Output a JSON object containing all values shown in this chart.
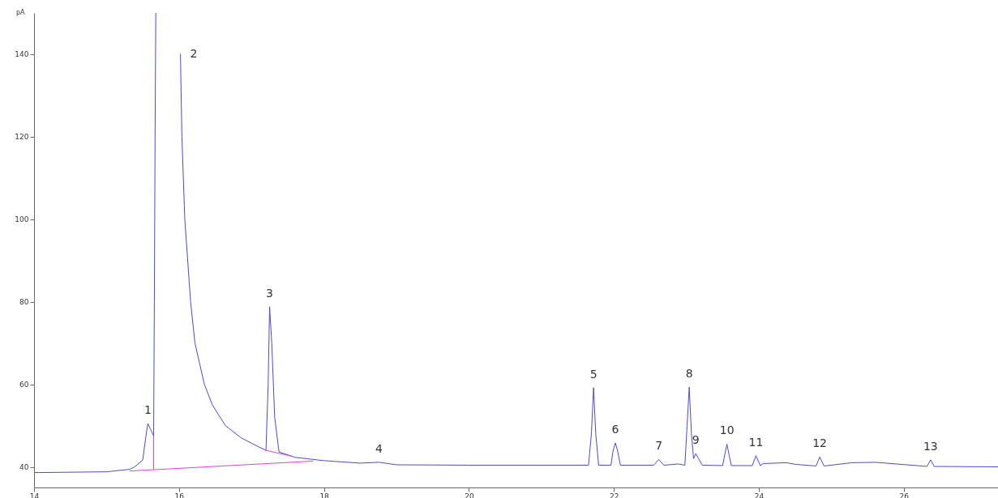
{
  "chart_data": {
    "type": "line",
    "ylabel": "pA",
    "xlim": [
      14,
      27.3
    ],
    "xticks": [
      14,
      16,
      18,
      20,
      22,
      24,
      26
    ],
    "ylim": [
      35,
      150
    ],
    "yticks": [
      40,
      60,
      80,
      100,
      120,
      140
    ],
    "grid": false,
    "marker": "none",
    "line_style": "solid",
    "series": [
      {
        "color": "#4b4bd0",
        "x": [
          14.0,
          15.0,
          15.32,
          15.39,
          15.5,
          15.54,
          15.57,
          15.61,
          15.65,
          15.66,
          15.67,
          15.68,
          16.01,
          16.02,
          16.04,
          16.08,
          16.16,
          16.22,
          16.35,
          16.46,
          16.64,
          16.86,
          17.08,
          17.2,
          17.23,
          17.25,
          17.28,
          17.32,
          17.38,
          17.6,
          18.0,
          18.5,
          18.76,
          19.0,
          20.0,
          21.0,
          21.65,
          21.69,
          21.72,
          21.75,
          21.79,
          21.96,
          21.99,
          22.02,
          22.05,
          22.09,
          22.55,
          22.62,
          22.69,
          22.89,
          22.98,
          23.01,
          23.04,
          23.07,
          23.1,
          23.13,
          23.22,
          23.5,
          23.56,
          23.62,
          23.91,
          23.96,
          24.02,
          24.06,
          24.38,
          24.51,
          24.79,
          24.84,
          24.9,
          25.28,
          25.61,
          26.32,
          26.37,
          26.42,
          27.3
        ],
        "values": [
          38.6,
          38.8,
          39.4,
          40.0,
          41.7,
          47,
          50.5,
          49,
          47.5,
          80,
          120,
          150,
          null,
          140,
          120,
          100,
          80,
          70,
          60,
          55,
          50,
          47,
          45,
          44.0,
          60,
          78.8,
          70,
          52,
          43.6,
          42.3,
          41.5,
          40.9,
          41.1,
          40.5,
          40.4,
          40.4,
          40.4,
          48,
          59.2,
          48,
          40.4,
          40.4,
          44,
          45.8,
          44,
          40.4,
          40.4,
          41.8,
          40.4,
          40.7,
          40.4,
          50,
          59.3,
          48,
          42.0,
          43.2,
          40.4,
          40.3,
          45.5,
          40.3,
          40.3,
          42.7,
          40.3,
          40.8,
          41.0,
          40.6,
          40.2,
          42.4,
          40.2,
          41.0,
          41.1,
          40.1,
          41.7,
          40.1,
          40.0
        ]
      },
      {
        "color": "#e040e0",
        "x": [
          15.32,
          15.65,
          15.65,
          15.65,
          17.85
        ],
        "values": [
          39.0,
          39.3,
          47.5,
          39.3,
          41.4
        ]
      },
      {
        "color": "#e040e0",
        "x": [
          17.2,
          17.55
        ],
        "values": [
          44.0,
          42.6
        ]
      }
    ],
    "annotations": [
      {
        "text": "1",
        "x": 15.57,
        "y": 50.5
      },
      {
        "text": "2",
        "x": 16.02,
        "y": 140
      },
      {
        "text": "3",
        "x": 17.25,
        "y": 78.8
      },
      {
        "text": "4",
        "x": 18.76,
        "y": 41.1
      },
      {
        "text": "5",
        "x": 21.72,
        "y": 59.2
      },
      {
        "text": "6",
        "x": 22.02,
        "y": 45.8
      },
      {
        "text": "7",
        "x": 22.62,
        "y": 41.8
      },
      {
        "text": "8",
        "x": 23.04,
        "y": 59.3
      },
      {
        "text": "9",
        "x": 23.13,
        "y": 43.2
      },
      {
        "text": "10",
        "x": 23.56,
        "y": 45.5
      },
      {
        "text": "11",
        "x": 23.96,
        "y": 42.7
      },
      {
        "text": "12",
        "x": 24.84,
        "y": 42.4
      },
      {
        "text": "13",
        "x": 26.37,
        "y": 41.7
      }
    ]
  }
}
